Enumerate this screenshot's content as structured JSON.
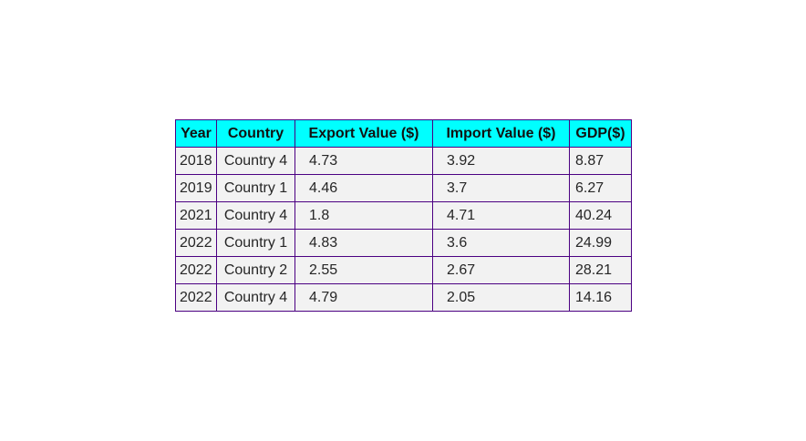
{
  "chart_data": {
    "type": "table",
    "columns": [
      "Year",
      "Country",
      "Export Value ($)",
      "Import Value ($)",
      "GDP($)"
    ],
    "rows": [
      [
        "2018",
        "Country 4",
        "4.73",
        "3.92",
        "8.87"
      ],
      [
        "2019",
        "Country 1",
        "4.46",
        "3.7",
        "6.27"
      ],
      [
        "2021",
        "Country 4",
        "1.8",
        "4.71",
        "40.24"
      ],
      [
        "2022",
        "Country 1",
        "4.83",
        "3.6",
        "24.99"
      ],
      [
        "2022",
        "Country 2",
        "2.55",
        "2.67",
        "28.21"
      ],
      [
        "2022",
        "Country 4",
        "4.79",
        "2.05",
        "14.16"
      ]
    ],
    "colors": {
      "header_background": "#00ffff",
      "cell_background": "#f2f2f2",
      "border": "#4b0082"
    }
  }
}
